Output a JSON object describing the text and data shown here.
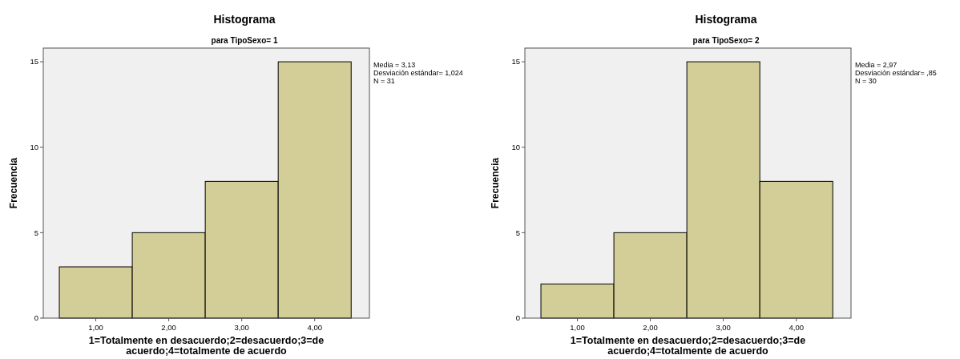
{
  "chart_data": [
    {
      "type": "histogram",
      "title": "Histograma",
      "subtitle": "para TipoSexo= 1",
      "xlabel": "1=Totalmente en desacuerdo;2=desacuerdo;3=de acuerdo;4=totalmente de acuerdo",
      "ylabel": "Frecuencia",
      "bins": [
        0.5,
        1.5,
        2.5,
        3.5,
        4.5
      ],
      "values": [
        3,
        5,
        8,
        15
      ],
      "color": "#d3ce97",
      "xlim": [
        0.28,
        4.75
      ],
      "ylim": [
        0,
        15.8
      ],
      "xticks": [
        {
          "value": 1,
          "label": "1,00"
        },
        {
          "value": 2,
          "label": "2,00"
        },
        {
          "value": 3,
          "label": "3,00"
        },
        {
          "value": 4,
          "label": "4,00"
        }
      ],
      "yticks": [
        0,
        5,
        10,
        15
      ],
      "annotations": [
        "Media = 3,13",
        "Desviación estándar= 1,024",
        "N = 31"
      ]
    },
    {
      "type": "histogram",
      "title": "Histograma",
      "subtitle": "para TipoSexo= 2",
      "xlabel": "1=Totalmente en desacuerdo;2=desacuerdo;3=de acuerdo;4=totalmente de acuerdo",
      "ylabel": "Frecuencia",
      "bins": [
        0.5,
        1.5,
        2.5,
        3.5,
        4.5
      ],
      "values": [
        2,
        5,
        15,
        8
      ],
      "color": "#d3ce97",
      "xlim": [
        0.28,
        4.75
      ],
      "ylim": [
        0,
        15.8
      ],
      "xticks": [
        {
          "value": 1,
          "label": "1,00"
        },
        {
          "value": 2,
          "label": "2,00"
        },
        {
          "value": 3,
          "label": "3,00"
        },
        {
          "value": 4,
          "label": "4,00"
        }
      ],
      "yticks": [
        0,
        5,
        10,
        15
      ],
      "annotations": [
        "Media = 2,97",
        "Desviación estándar= ,85",
        "N = 30"
      ]
    }
  ]
}
